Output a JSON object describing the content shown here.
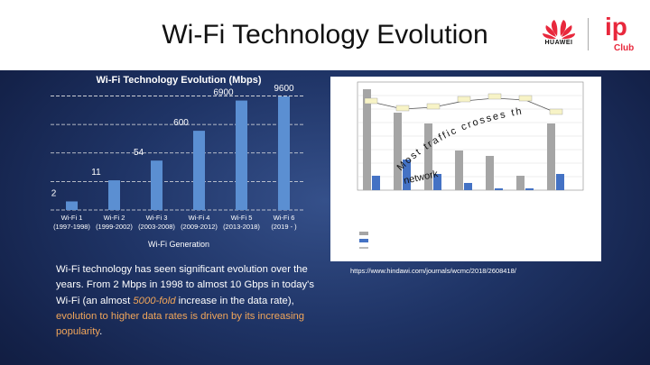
{
  "slide": {
    "title": "Wi-Fi Technology Evolution"
  },
  "logos": {
    "huawei": "HUAWEI",
    "ip": "ip",
    "club": "Club"
  },
  "chart_data": {
    "type": "bar",
    "title": "Wi-Fi Technology Evolution (Mbps)",
    "xlabel": "Wi-Fi Generation",
    "ylabel": "",
    "y_scale": "log",
    "categories": [
      {
        "name": "Wi-Fi 1",
        "years": "(1997-1998)"
      },
      {
        "name": "Wi-Fi 2",
        "years": "(1999-2002)"
      },
      {
        "name": "Wi-Fi 3",
        "years": "(2003-2008)"
      },
      {
        "name": "Wi-Fi 4",
        "years": "(2009-2012)"
      },
      {
        "name": "Wi-Fi 5",
        "years": "(2013-2018)"
      },
      {
        "name": "Wi-Fi 6",
        "years": "(2019 - )"
      }
    ],
    "values": [
      2,
      11,
      54,
      600,
      6900,
      9600
    ],
    "data_labels": [
      "2",
      "11",
      "54",
      "600",
      "6900",
      "9600"
    ],
    "grid": true,
    "bar_color": "#5b8fd2"
  },
  "figure_overlay": {
    "line1": "Most traffic crosses the Wi-Fi",
    "line2": "network"
  },
  "body": {
    "p1": "Wi-Fi technology has seen significant evolution over the years. From 2 Mbps in 1998 to almost 10 Gbps in today's Wi-Fi (an almost ",
    "em1": "5000-fold",
    "p2": " increase in the data rate), ",
    "em2": "evolution to higher data rates is driven by its increasing popularity",
    "p3": "."
  },
  "reference": {
    "url": "https://www.hindawi.com/journals/wcmc/2018/2608418/"
  },
  "colors": {
    "accent": "#f0a55a",
    "background": "#1f3466",
    "huawei_red": "#e8283c"
  }
}
